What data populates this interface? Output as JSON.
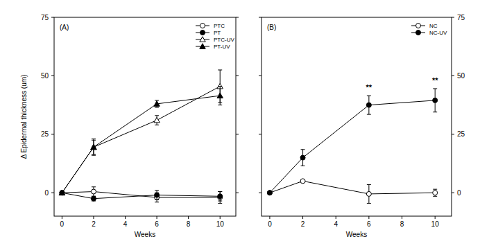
{
  "chart_data": [
    {
      "type": "line",
      "title": "(A)",
      "ylabel": "Δ Epidermal thickness (um)",
      "xlabel": "Weeks",
      "x": [
        0,
        2,
        6,
        10
      ],
      "xlim": [
        -0.5,
        11
      ],
      "xticks": [
        0,
        2,
        4,
        6,
        8,
        10
      ],
      "ylim": [
        -10,
        75
      ],
      "yticks": [
        0,
        25,
        50,
        75
      ],
      "legend": "upper right",
      "series": [
        {
          "name": "PTC",
          "color": "#000000",
          "marker": "circle-open",
          "values": [
            0,
            0.5,
            -2,
            -2
          ],
          "errors": [
            0,
            2,
            2,
            2.5
          ]
        },
        {
          "name": "PT",
          "color": "#000000",
          "marker": "circle",
          "values": [
            0,
            -2.5,
            -1,
            -1.5
          ],
          "errors": [
            0,
            1,
            2,
            2
          ]
        },
        {
          "name": "PTC-UV",
          "color": "#000000",
          "marker": "triangle-open",
          "values": [
            0,
            19.5,
            31,
            45.5
          ],
          "errors": [
            0,
            3,
            2,
            7
          ]
        },
        {
          "name": "PT-UV",
          "color": "#000000",
          "marker": "triangle",
          "values": [
            0,
            19.5,
            38,
            41.5
          ],
          "errors": [
            0,
            3.5,
            1.5,
            4
          ]
        }
      ]
    },
    {
      "type": "line",
      "title": "(B)",
      "xlabel": "Weeks",
      "x": [
        0,
        2,
        6,
        10
      ],
      "xlim": [
        -0.5,
        11
      ],
      "xticks": [
        0,
        2,
        4,
        6,
        8,
        10
      ],
      "ylim": [
        -10,
        75
      ],
      "yticks": [
        0,
        25,
        50,
        75
      ],
      "legend": "upper right",
      "annotations": [
        {
          "text": "**",
          "x": 6,
          "y": 44
        },
        {
          "text": "**",
          "x": 10,
          "y": 47
        }
      ],
      "series": [
        {
          "name": "NC",
          "color": "#000000",
          "marker": "circle-open",
          "values": [
            0,
            5,
            -0.5,
            0
          ],
          "errors": [
            0,
            0.5,
            4,
            1.5
          ]
        },
        {
          "name": "NC-UV",
          "color": "#000000",
          "marker": "circle",
          "values": [
            0,
            15,
            37.5,
            39.5
          ],
          "errors": [
            0,
            3.5,
            4,
            5
          ]
        }
      ]
    }
  ]
}
